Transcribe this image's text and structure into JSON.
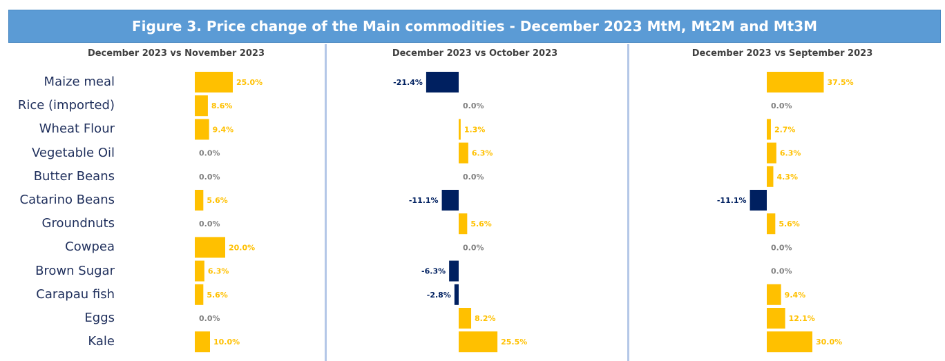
{
  "title": "Figure 3. Price change of the Main commodities - December 2023 MtM, Mt2M and Mt3M",
  "colors": {
    "banner": "#5b9bd5",
    "positive": "#ffc000",
    "negative": "#002060",
    "zero_label": "#808080",
    "category_text": "#1f2f5c"
  },
  "chart_data": {
    "type": "bar",
    "orientation": "horizontal",
    "categories": [
      "Maize meal",
      "Rice (imported)",
      "Wheat Flour",
      "Vegetable Oil",
      "Butter Beans",
      "Catarino Beans",
      "Groundnuts",
      "Cowpea",
      "Brown Sugar",
      "Carapau fish",
      "Eggs",
      "Kale"
    ],
    "panels": [
      {
        "title": "December 2023 vs November 2023",
        "values": [
          25.0,
          8.6,
          9.4,
          0.0,
          0.0,
          5.6,
          0.0,
          20.0,
          6.3,
          5.6,
          0.0,
          10.0
        ],
        "labels": [
          "25.0%",
          "8.6%",
          "9.4%",
          "0.0%",
          "0.0%",
          "5.6%",
          "0.0%",
          "20.0%",
          "6.3%",
          "5.6%",
          "0.0%",
          "10.0%"
        ]
      },
      {
        "title": "December 2023 vs October 2023",
        "values": [
          -21.4,
          0.0,
          1.3,
          6.3,
          0.0,
          -11.1,
          5.6,
          0.0,
          -6.3,
          -2.8,
          8.2,
          25.5
        ],
        "labels": [
          "-21.4%",
          "0.0%",
          "1.3%",
          "6.3%",
          "0.0%",
          "-11.1%",
          "5.6%",
          "0.0%",
          "-6.3%",
          "-2.8%",
          "8.2%",
          "25.5%"
        ]
      },
      {
        "title": "December 2023 vs September 2023",
        "values": [
          37.5,
          0.0,
          2.7,
          6.3,
          4.3,
          -11.1,
          5.6,
          0.0,
          0.0,
          9.4,
          12.1,
          30.0
        ],
        "labels": [
          "37.5%",
          "0.0%",
          "2.7%",
          "6.3%",
          "4.3%",
          "-11.1%",
          "5.6%",
          "0.0%",
          "0.0%",
          "9.4%",
          "12.1%",
          "30.0%"
        ]
      }
    ],
    "grid": false,
    "legend": "none"
  }
}
